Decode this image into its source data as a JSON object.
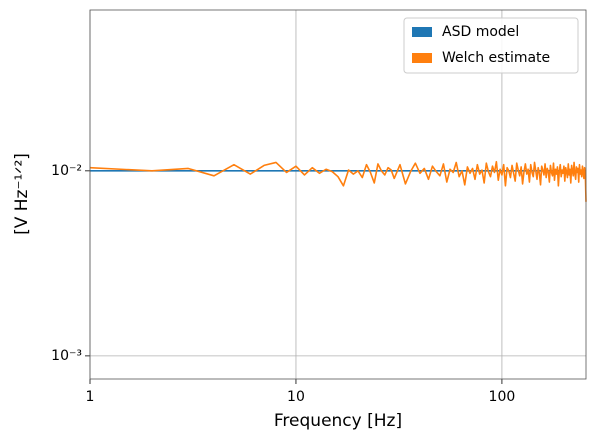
{
  "chart_data": {
    "type": "line",
    "xlabel": "Frequency [Hz]",
    "ylabel": "[V Hz⁻¹ᐟ²]",
    "xscale": "log",
    "yscale": "log",
    "grid": true,
    "legend": "upper right",
    "xlim": [
      1,
      256
    ],
    "ylim": [
      0.00075,
      0.074
    ],
    "xticks": [
      1,
      10,
      100
    ],
    "yticks": [
      {
        "value": 0.001,
        "label": "10⁻³"
      },
      {
        "value": 0.01,
        "label": "10⁻²"
      }
    ],
    "series": [
      {
        "name": "ASD model",
        "color": "#1f77b4",
        "x": [
          1,
          256
        ],
        "values": [
          0.01,
          0.01
        ]
      },
      {
        "name": "Welch estimate",
        "color": "#ff7f0e",
        "x": [
          1,
          2,
          3,
          4,
          5,
          6,
          7,
          8,
          9,
          10,
          11,
          12,
          13,
          14,
          15,
          16,
          17,
          18,
          19,
          20,
          21,
          22,
          23,
          24,
          25,
          26,
          27,
          28,
          29,
          30,
          32,
          34,
          36,
          38,
          40,
          42,
          44,
          46,
          48,
          50,
          52,
          54,
          56,
          58,
          60,
          62,
          64,
          66,
          68,
          70,
          72,
          74,
          76,
          78,
          80,
          82,
          84,
          86,
          88,
          90,
          92,
          94,
          96,
          98,
          100,
          102,
          104,
          106,
          108,
          110,
          112,
          114,
          116,
          118,
          120,
          122,
          124,
          126,
          128,
          130,
          132,
          134,
          136,
          138,
          140,
          142,
          144,
          146,
          148,
          150,
          152,
          154,
          156,
          158,
          160,
          162,
          164,
          166,
          168,
          170,
          172,
          174,
          176,
          178,
          180,
          182,
          184,
          186,
          188,
          190,
          192,
          194,
          196,
          198,
          200,
          202,
          204,
          206,
          208,
          210,
          212,
          214,
          216,
          218,
          220,
          222,
          224,
          226,
          228,
          230,
          232,
          234,
          236,
          238,
          240,
          242,
          244,
          246,
          248,
          250,
          252,
          254,
          256
        ],
        "values": [
          0.0104,
          0.01,
          0.0103,
          0.0094,
          0.0108,
          0.0096,
          0.0107,
          0.0111,
          0.0098,
          0.0106,
          0.0095,
          0.0104,
          0.0097,
          0.0102,
          0.0099,
          0.0093,
          0.0083,
          0.0101,
          0.0096,
          0.01,
          0.0092,
          0.0108,
          0.0098,
          0.0086,
          0.0109,
          0.01,
          0.0095,
          0.0104,
          0.0101,
          0.0091,
          0.0108,
          0.0085,
          0.0099,
          0.011,
          0.0097,
          0.0103,
          0.009,
          0.0106,
          0.0099,
          0.0094,
          0.0109,
          0.0087,
          0.0102,
          0.0098,
          0.0111,
          0.0093,
          0.01,
          0.0084,
          0.0105,
          0.0097,
          0.0103,
          0.009,
          0.0108,
          0.0096,
          0.0101,
          0.0086,
          0.011,
          0.0099,
          0.0093,
          0.0106,
          0.0098,
          0.0112,
          0.0089,
          0.0102,
          0.0095,
          0.0108,
          0.0083,
          0.0104,
          0.01,
          0.0092,
          0.0107,
          0.0097,
          0.0088,
          0.011,
          0.0101,
          0.0094,
          0.0105,
          0.0085,
          0.0099,
          0.0109,
          0.0096,
          0.0102,
          0.0087,
          0.0108,
          0.0098,
          0.0093,
          0.0111,
          0.01,
          0.009,
          0.0104,
          0.0097,
          0.0084,
          0.0106,
          0.0101,
          0.0095,
          0.0109,
          0.0092,
          0.0103,
          0.0099,
          0.0087,
          0.0107,
          0.0098,
          0.0094,
          0.011,
          0.0089,
          0.0102,
          0.0096,
          0.0105,
          0.0083,
          0.01,
          0.0108,
          0.0093,
          0.0101,
          0.0097,
          0.0106,
          0.0088,
          0.0104,
          0.0099,
          0.0092,
          0.0109,
          0.0095,
          0.0102,
          0.0086,
          0.0107,
          0.01,
          0.0094,
          0.0111,
          0.0097,
          0.009,
          0.0105,
          0.0098,
          0.0103,
          0.0087,
          0.0108,
          0.0096,
          0.0101,
          0.0093,
          0.0106,
          0.0099,
          0.0091,
          0.0104,
          0.0097,
          0.0068
        ]
      }
    ]
  }
}
